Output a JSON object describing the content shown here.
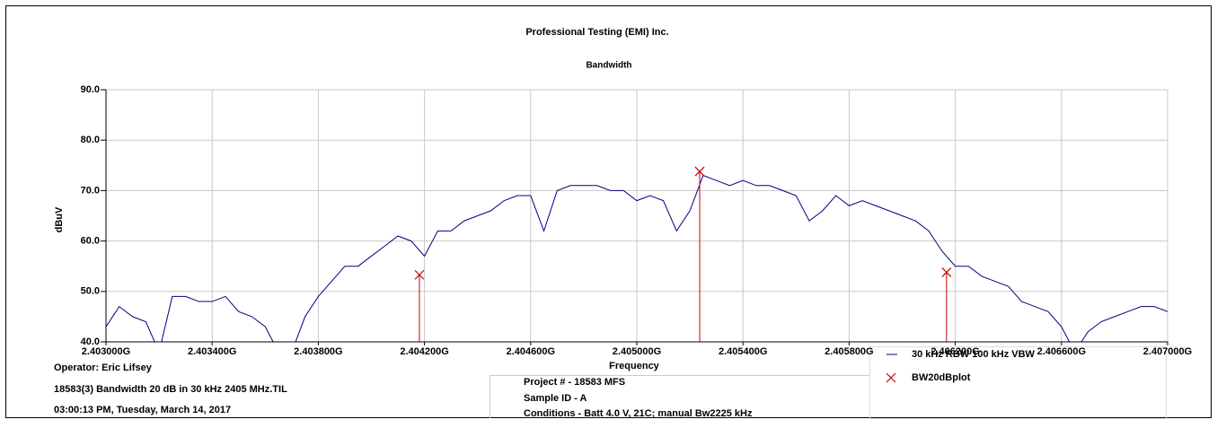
{
  "chart_data": {
    "type": "line",
    "title": "Professional Testing (EMI) Inc.",
    "subtitle": "Bandwidth",
    "y_label": "dBuV",
    "x_label": "Frequency",
    "x": [
      2.403,
      2.40305,
      2.4031,
      2.40315,
      2.4032,
      2.40325,
      2.4033,
      2.40335,
      2.4034,
      2.40345,
      2.4035,
      2.40355,
      2.4036,
      2.40365,
      2.4037,
      2.40375,
      2.4038,
      2.40385,
      2.4039,
      2.40395,
      2.404,
      2.40405,
      2.4041,
      2.40415,
      2.4042,
      2.40425,
      2.4043,
      2.40435,
      2.4044,
      2.40445,
      2.4045,
      2.40455,
      2.4046,
      2.40465,
      2.4047,
      2.40475,
      2.4048,
      2.40485,
      2.4049,
      2.40495,
      2.405,
      2.40505,
      2.4051,
      2.40515,
      2.4052,
      2.40525,
      2.4053,
      2.40535,
      2.4054,
      2.40545,
      2.4055,
      2.40555,
      2.4056,
      2.40565,
      2.4057,
      2.40575,
      2.4058,
      2.40585,
      2.4059,
      2.40595,
      2.406,
      2.40605,
      2.4061,
      2.40615,
      2.4062,
      2.40625,
      2.4063,
      2.40635,
      2.4064,
      2.40645,
      2.4065,
      2.40655,
      2.4066,
      2.40665,
      2.4067,
      2.40675,
      2.4068,
      2.40685,
      2.4069,
      2.40695,
      2.407
    ],
    "series": [
      {
        "name": "30 kHz RBW 100 kHz VBW",
        "color": "#000080",
        "values": [
          43,
          47,
          45,
          44,
          38,
          49,
          49,
          48,
          48,
          49,
          46,
          45,
          43,
          38,
          38,
          45,
          49,
          52,
          55,
          55,
          57,
          59,
          61,
          60,
          57,
          62,
          62,
          64,
          65,
          66,
          68,
          69,
          69,
          62,
          70,
          71,
          71,
          71,
          70,
          70,
          68,
          69,
          68,
          62,
          66,
          73,
          72,
          71,
          72,
          71,
          71,
          70,
          69,
          64,
          66,
          69,
          67,
          68,
          67,
          66,
          65,
          64,
          62,
          58,
          55,
          55,
          53,
          52,
          51,
          48,
          47,
          46,
          43,
          38,
          42,
          44,
          45,
          46,
          47,
          47,
          46
        ]
      }
    ],
    "markers": {
      "name": "BW20dBplot",
      "color": "#c00000",
      "x": [
        2.404181,
        2.405237,
        2.406167
      ],
      "values": [
        53.3,
        73.8,
        53.8
      ]
    },
    "xlim": [
      2.403,
      2.407
    ],
    "xticks": [
      {
        "value": 2.403,
        "label": "2.403000G"
      },
      {
        "value": 2.4034,
        "label": "2.403400G"
      },
      {
        "value": 2.4038,
        "label": "2.403800G"
      },
      {
        "value": 2.4042,
        "label": "2.404200G"
      },
      {
        "value": 2.4046,
        "label": "2.404600G"
      },
      {
        "value": 2.405,
        "label": "2.405000G"
      },
      {
        "value": 2.4054,
        "label": "2.405400G"
      },
      {
        "value": 2.4058,
        "label": "2.405800G"
      },
      {
        "value": 2.4062,
        "label": "2.406200G"
      },
      {
        "value": 2.4066,
        "label": "2.406600G"
      },
      {
        "value": 2.407,
        "label": "2.407000G"
      }
    ],
    "ylim": [
      40,
      90
    ],
    "yticks": [
      {
        "value": 40,
        "label": "40.0"
      },
      {
        "value": 50,
        "label": "50.0"
      },
      {
        "value": 60,
        "label": "60.0"
      },
      {
        "value": 70,
        "label": "70.0"
      },
      {
        "value": 80,
        "label": "80.0"
      },
      {
        "value": 90,
        "label": "90.0"
      }
    ],
    "grid": true
  },
  "footer": {
    "operator": "Operator: Eric Lifsey",
    "file": "18583(3) Bandwidth 20 dB in 30 kHz 2405 MHz.TIL",
    "time": "03:00:13 PM, Tuesday, March 14, 2017",
    "project": "Project # - 18583 MFS",
    "sample": "Sample ID - A",
    "conditions": "Conditions - Batt 4.0 V, 21C; manual Bw2225 kHz"
  }
}
